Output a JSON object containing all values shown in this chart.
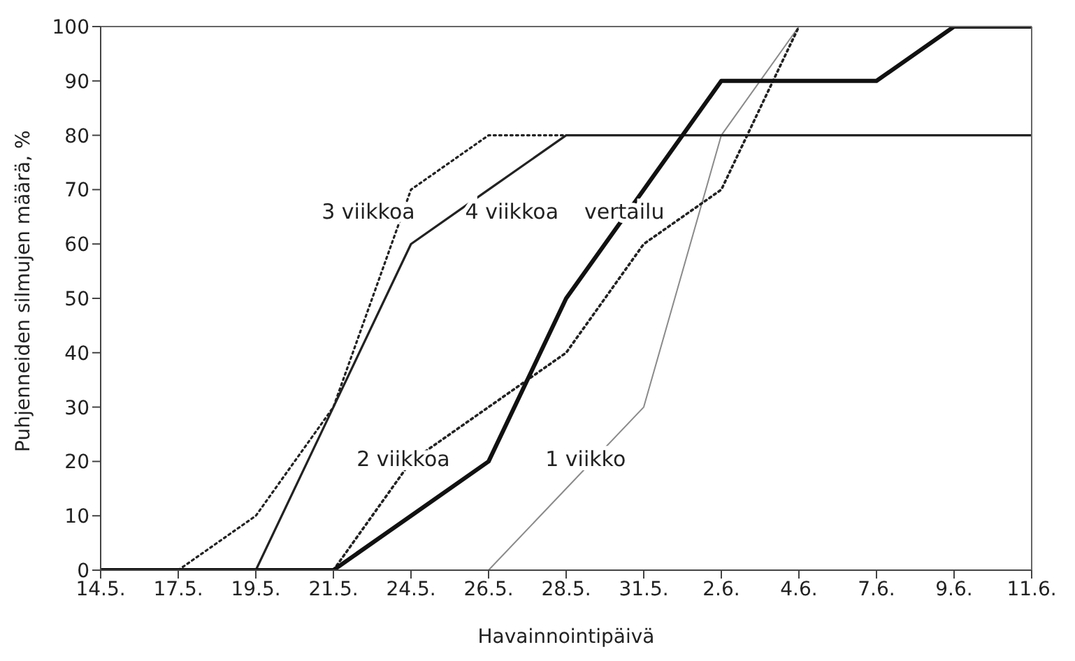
{
  "chart_data": {
    "type": "line",
    "xlabel": "Havainnointipäivä",
    "ylabel": "Puhjenneiden silmujen määrä, %",
    "categories": [
      "14.5.",
      "17.5.",
      "19.5.",
      "21.5.",
      "24.5.",
      "26.5.",
      "28.5.",
      "31.5.",
      "2.6.",
      "4.6.",
      "7.6.",
      "9.6.",
      "11.6."
    ],
    "series": [
      {
        "name": "1 viikko",
        "color": "#8a8a8a",
        "line_style": "solid",
        "values": [
          null,
          null,
          null,
          null,
          null,
          0,
          15,
          30,
          80,
          100,
          null,
          null,
          null
        ]
      },
      {
        "name": "2 viikkoa",
        "color": "#222222",
        "line_style": "dotted",
        "values": [
          null,
          null,
          null,
          0,
          20,
          30,
          40,
          60,
          70,
          100,
          null,
          null,
          null
        ]
      },
      {
        "name": "3 viikkoa",
        "color": "#222222",
        "line_style": "dotted",
        "values": [
          null,
          0,
          10,
          30,
          70,
          80,
          80,
          null,
          null,
          null,
          null,
          null,
          null
        ]
      },
      {
        "name": "4 viikkoa",
        "color": "#222222",
        "line_style": "solid",
        "values": [
          0,
          0,
          0,
          30,
          60,
          70,
          80,
          80,
          80,
          80,
          80,
          80,
          80
        ]
      },
      {
        "name": "vertailu",
        "color": "#111111",
        "line_style": "solid",
        "values": [
          0,
          0,
          0,
          0,
          10,
          20,
          50,
          70,
          90,
          90,
          90,
          100,
          100
        ]
      }
    ],
    "ylim": [
      0,
      100
    ],
    "yticks": [
      0,
      10,
      20,
      30,
      40,
      50,
      60,
      70,
      80,
      90,
      100
    ],
    "grid": false,
    "marker": "none"
  }
}
